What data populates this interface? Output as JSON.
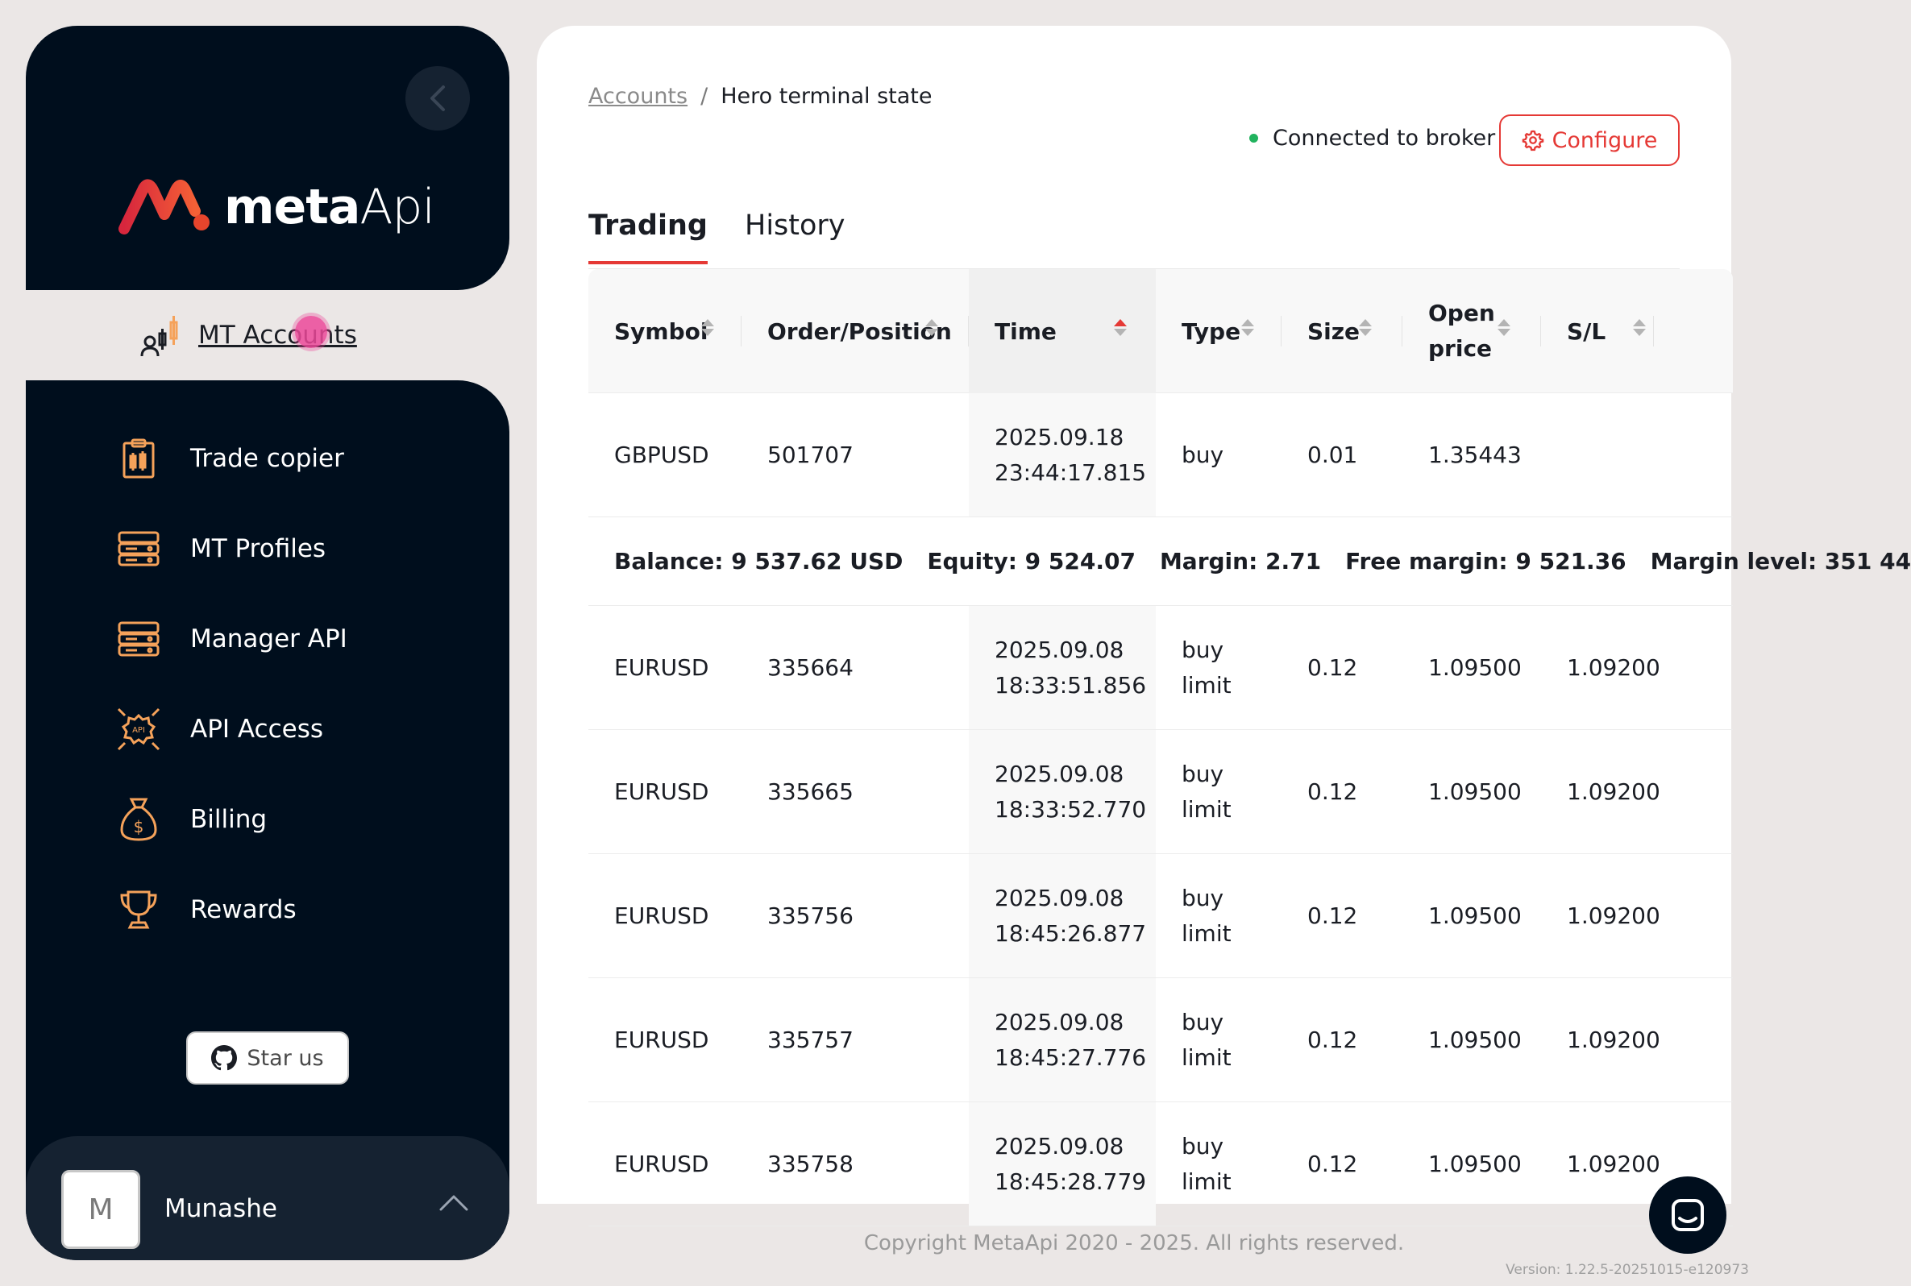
{
  "sidebar": {
    "logo": {
      "text_bold": "meta",
      "text_light": "Api"
    },
    "active_item": {
      "label": "MT Accounts",
      "icon": "candlestick-user-icon"
    },
    "items": [
      {
        "label": "Trade copier",
        "icon": "clipboard-chart-icon"
      },
      {
        "label": "MT Profiles",
        "icon": "server-icon"
      },
      {
        "label": "Manager API",
        "icon": "server-icon"
      },
      {
        "label": "API Access",
        "icon": "api-gear-icon"
      },
      {
        "label": "Billing",
        "icon": "money-bag-icon"
      },
      {
        "label": "Rewards",
        "icon": "trophy-icon"
      }
    ],
    "star_button": "Star us",
    "user": {
      "initial": "M",
      "name": "Munashe"
    }
  },
  "breadcrumb": {
    "link": "Accounts",
    "separator": "/",
    "current": "Hero terminal state"
  },
  "status": {
    "text": "Connected to broker",
    "color": "#21b35e"
  },
  "configure_button": "Configure",
  "tabs": [
    {
      "label": "Trading",
      "active": true
    },
    {
      "label": "History",
      "active": false
    }
  ],
  "table": {
    "columns": [
      "Symbol",
      "Order/Position",
      "Time",
      "Type",
      "Size",
      "Open price",
      "S/L"
    ],
    "open_price_lines": [
      "Open",
      "price"
    ],
    "sorted_column": "Time",
    "positions": [
      {
        "symbol": "GBPUSD",
        "id": "501707",
        "date": "2025.09.18",
        "time": "23:44:17.815",
        "type1": "buy",
        "type2": "",
        "size": "0.01",
        "open": "1.35443",
        "sl": ""
      }
    ],
    "summary": {
      "balance": "Balance: 9 537.62 USD",
      "equity": "Equity: 9 524.07",
      "margin": "Margin: 2.71",
      "free_margin": "Free margin: 9 521.36",
      "margin_level": "Margin level: 351 44"
    },
    "orders": [
      {
        "symbol": "EURUSD",
        "id": "335664",
        "date": "2025.09.08",
        "time": "18:33:51.856",
        "type1": "buy",
        "type2": "limit",
        "size": "0.12",
        "open": "1.09500",
        "sl": "1.09200"
      },
      {
        "symbol": "EURUSD",
        "id": "335665",
        "date": "2025.09.08",
        "time": "18:33:52.770",
        "type1": "buy",
        "type2": "limit",
        "size": "0.12",
        "open": "1.09500",
        "sl": "1.09200"
      },
      {
        "symbol": "EURUSD",
        "id": "335756",
        "date": "2025.09.08",
        "time": "18:45:26.877",
        "type1": "buy",
        "type2": "limit",
        "size": "0.12",
        "open": "1.09500",
        "sl": "1.09200"
      },
      {
        "symbol": "EURUSD",
        "id": "335757",
        "date": "2025.09.08",
        "time": "18:45:27.776",
        "type1": "buy",
        "type2": "limit",
        "size": "0.12",
        "open": "1.09500",
        "sl": "1.09200"
      },
      {
        "symbol": "EURUSD",
        "id": "335758",
        "date": "2025.09.08",
        "time": "18:45:28.779",
        "type1": "buy",
        "type2": "limit",
        "size": "0.12",
        "open": "1.09500",
        "sl": "1.09200"
      }
    ]
  },
  "footer": "Copyright MetaApi 2020 - 2025. All rights reserved.",
  "version": "Version: 1.22.5-20251015-e120973",
  "colors": {
    "sidebar_bg": "#000e1d",
    "accent": "#e53935",
    "icon_accent": "#f5a25a"
  }
}
